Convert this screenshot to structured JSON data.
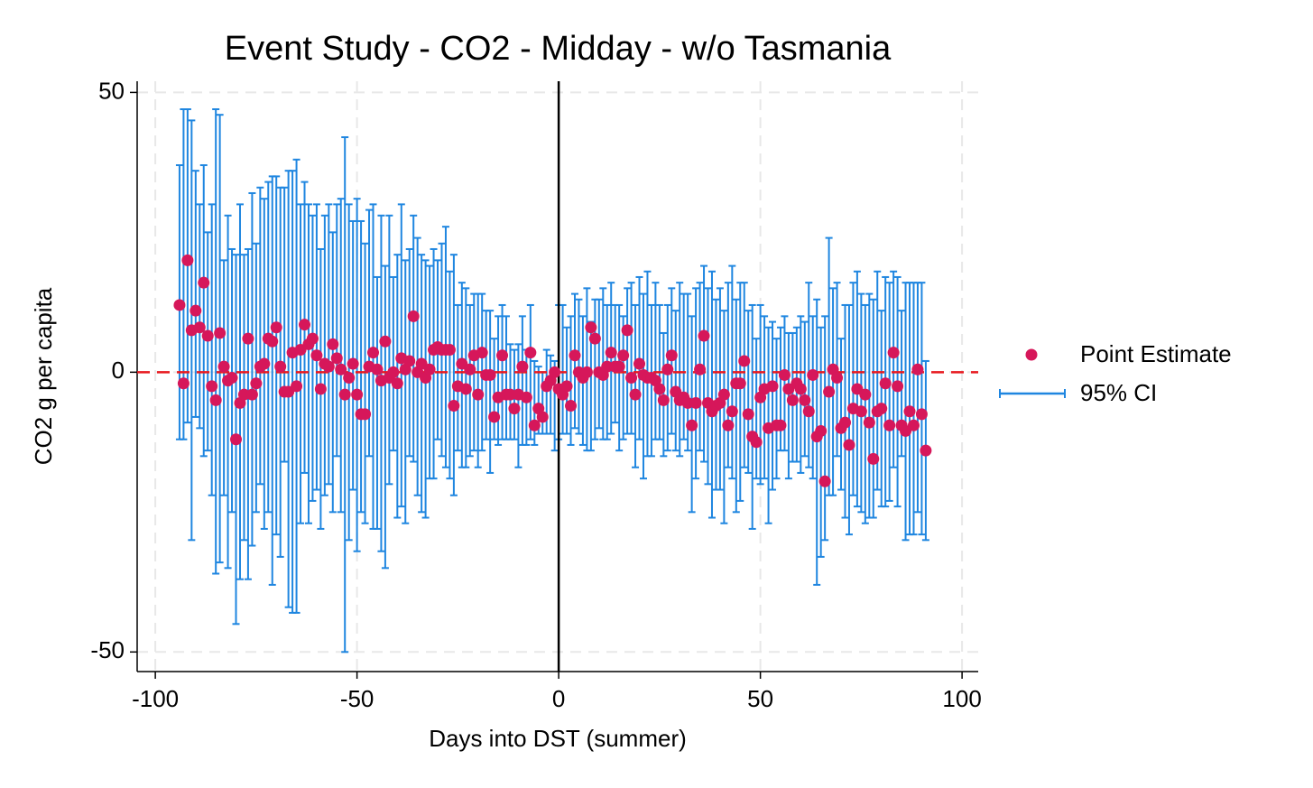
{
  "chart_data": {
    "type": "errorbar-scatter",
    "title": "Event Study - CO2 - Midday - w/o Tasmania",
    "x_label": "Days into DST (summer)",
    "y_label": "CO2 g per capita",
    "x": [
      -94,
      -93,
      -92,
      -91,
      -90,
      -89,
      -88,
      -87,
      -86,
      -85,
      -84,
      -83,
      -82,
      -81,
      -80,
      -79,
      -78,
      -77,
      -76,
      -75,
      -74,
      -73,
      -72,
      -71,
      -70,
      -69,
      -68,
      -67,
      -66,
      -65,
      -64,
      -63,
      -62,
      -61,
      -60,
      -59,
      -58,
      -57,
      -56,
      -55,
      -54,
      -53,
      -52,
      -51,
      -50,
      -49,
      -48,
      -47,
      -46,
      -45,
      -44,
      -43,
      -42,
      -41,
      -40,
      -39,
      -38,
      -37,
      -36,
      -35,
      -34,
      -33,
      -32,
      -31,
      -30,
      -29,
      -28,
      -27,
      -26,
      -25,
      -24,
      -23,
      -22,
      -21,
      -20,
      -19,
      -18,
      -17,
      -16,
      -15,
      -14,
      -13,
      -12,
      -11,
      -10,
      -9,
      -8,
      -7,
      -6,
      -5,
      -4,
      -3,
      -2,
      -1,
      0,
      1,
      2,
      3,
      4,
      5,
      6,
      7,
      8,
      9,
      10,
      11,
      12,
      13,
      14,
      15,
      16,
      17,
      18,
      19,
      20,
      21,
      22,
      23,
      24,
      25,
      26,
      27,
      28,
      29,
      30,
      31,
      32,
      33,
      34,
      35,
      36,
      37,
      38,
      39,
      40,
      41,
      42,
      43,
      44,
      45,
      46,
      47,
      48,
      49,
      50,
      51,
      52,
      53,
      54,
      55,
      56,
      57,
      58,
      59,
      60,
      61,
      62,
      63,
      64,
      65,
      66,
      67,
      68,
      69,
      70,
      71,
      72,
      73,
      74,
      75,
      76,
      77,
      78,
      79,
      80,
      81,
      82,
      83,
      84,
      85,
      86,
      87,
      88,
      89,
      90,
      91
    ],
    "series": [
      {
        "name": "Point Estimate",
        "color": "#d6175a",
        "values": [
          12,
          -2,
          20,
          7.5,
          11,
          8,
          16,
          6.5,
          -2.5,
          -5,
          7,
          1,
          -1.5,
          -1,
          -12,
          -5.5,
          -4,
          6,
          -4,
          -2,
          1,
          1.5,
          6,
          5.5,
          8,
          1,
          -3.5,
          -3.5,
          3.5,
          -2.5,
          4,
          8.5,
          5,
          6,
          3,
          -3,
          1.5,
          1,
          5,
          2.5,
          0.5,
          -4,
          -1,
          1.5,
          -4,
          -7.5,
          -7.5,
          1,
          3.5,
          0.5,
          -1.5,
          5.5,
          -1,
          0,
          -2,
          2.5,
          0.5,
          2,
          10,
          0,
          1.5,
          -1,
          0.5,
          4,
          4.5,
          4,
          4,
          4,
          -6,
          -2.5,
          1.5,
          -3,
          0.5,
          3,
          -4,
          3.5,
          -0.5,
          -0.5,
          -8,
          -4.5,
          3,
          -4,
          -4,
          -6.5,
          -4,
          1,
          -4.5,
          3.5,
          -9.5,
          -6.5,
          -8,
          -2.5,
          -1.5,
          0,
          -3,
          -4,
          -2.5,
          -6,
          3,
          0,
          -1,
          0,
          8,
          6,
          0,
          -0.5,
          1,
          3.5,
          1,
          1,
          3,
          7.5,
          -1,
          -4,
          1.5,
          -0.5,
          -1,
          -1,
          -1.5,
          -3,
          -5,
          0.5,
          3,
          -3.5,
          -5,
          -4.5,
          -5.5,
          -9.5,
          -5.5,
          0.5,
          6.5,
          -5.5,
          -7,
          -6,
          -5.5,
          -4,
          -9.5,
          -7,
          -2,
          -2,
          2,
          -7.5,
          -11.5,
          -12.5,
          -4.5,
          -3,
          -10,
          -2.5,
          -9.5,
          -9.5,
          -0.5,
          -3,
          -5,
          -2,
          -3,
          -5,
          -7,
          -0.5,
          -11.5,
          -10.5,
          -19.5,
          -3.5,
          0.5,
          -1,
          -10,
          -9,
          -13,
          -6.5,
          -3,
          -7,
          -4,
          -9,
          -15.5,
          -7,
          -6.5,
          -2,
          -9.5,
          3.5,
          -2.5,
          -9.5,
          -10.5,
          -7,
          -9.5,
          0.5,
          -7.5,
          -14
        ]
      },
      {
        "name": "95% CI",
        "color": "#1f86e0",
        "lower": [
          -12,
          -12,
          -9,
          -30,
          -8,
          -10,
          -15,
          -14,
          -22,
          -36,
          -34,
          -22,
          -35,
          -25,
          -45,
          -37,
          -30,
          -37,
          -31,
          -25,
          -20,
          -28,
          -25,
          -38,
          -29,
          -33,
          -16,
          -42,
          -43,
          -43,
          -27,
          -18,
          -27,
          -23,
          -21,
          -28,
          -22,
          -20,
          -25,
          -15,
          -25,
          -50,
          -30,
          -21,
          -32,
          -25,
          -27,
          -15,
          -28,
          -28,
          -32,
          -35,
          -20,
          -14,
          -26,
          -24,
          -27,
          -15,
          -16,
          -22,
          -25,
          -26,
          -19,
          -19,
          -12,
          -15,
          -17,
          -19,
          -22,
          -14,
          -17,
          -17,
          -15,
          -14,
          -17,
          -14,
          -12,
          -18,
          -12,
          -13,
          -12,
          -12,
          -12,
          -12,
          -17,
          -13,
          -13,
          -12,
          -13,
          -11,
          -11,
          -11,
          -11,
          -14,
          -12,
          -11,
          -11,
          -13,
          -10,
          -11,
          -13,
          -14,
          -14,
          -12,
          -10,
          -12,
          -12,
          -11,
          -9,
          -14,
          -12,
          -11,
          -11,
          -17,
          -12,
          -19,
          -15,
          -15,
          -12,
          -12,
          -15,
          -14,
          -11,
          -14,
          -15,
          -12,
          -14,
          -25,
          -19,
          -14,
          -16,
          -20,
          -26,
          -21,
          -21,
          -27,
          -17,
          -19,
          -25,
          -23,
          -17,
          -18,
          -28,
          -19,
          -20,
          -19,
          -27,
          -21,
          -19,
          -14,
          -14,
          -19,
          -16,
          -16,
          -18,
          -15,
          -17,
          -19,
          -38,
          -33,
          -30,
          -22,
          -22,
          -15,
          -21,
          -26,
          -29,
          -22,
          -24,
          -25,
          -27,
          -26,
          -26,
          -21,
          -24,
          -24,
          -23,
          -17,
          -24,
          -15,
          -30,
          -29,
          -29,
          -25,
          -29,
          -30
        ],
        "upper": [
          37,
          47,
          47,
          45,
          36,
          30,
          37,
          25,
          30,
          47,
          46,
          20,
          28,
          22,
          21,
          30,
          21,
          22,
          32,
          23,
          33,
          31,
          34,
          35,
          35,
          33,
          33,
          36,
          36,
          38,
          30,
          34,
          30,
          28,
          30,
          22,
          28,
          30,
          25,
          30,
          31,
          42,
          30,
          27,
          31,
          27,
          23,
          29,
          30,
          17,
          28,
          19,
          28,
          17,
          21,
          30,
          20,
          22,
          28,
          24,
          21,
          20,
          19,
          22,
          20,
          23,
          26,
          18,
          21,
          12,
          16,
          15,
          12,
          14,
          14,
          14,
          11,
          11,
          6,
          10,
          12,
          10,
          5,
          4,
          5,
          10,
          4,
          12,
          2,
          1,
          0,
          4,
          3,
          2,
          12,
          12,
          8,
          10,
          14,
          13,
          10,
          15,
          9,
          13,
          13,
          15,
          12,
          16,
          12,
          12,
          10,
          15,
          16,
          12,
          17,
          14,
          18,
          12,
          16,
          12,
          7,
          12,
          15,
          11,
          16,
          14,
          14,
          10,
          15,
          16,
          19,
          15,
          18,
          13,
          15,
          11,
          16,
          19,
          13,
          16,
          16,
          11,
          12,
          6,
          12,
          10,
          8,
          9,
          6,
          8,
          10,
          7,
          7,
          8,
          10,
          9,
          16,
          10,
          13,
          8,
          10,
          24,
          15,
          16,
          6,
          12,
          12,
          16,
          18,
          14,
          12,
          14,
          13,
          18,
          11,
          17,
          16,
          18,
          17,
          11,
          16,
          16,
          16,
          16,
          16,
          2
        ]
      }
    ],
    "xlim": [
      -104.5,
      104
    ],
    "ylim": [
      -53.5,
      52
    ],
    "xticks": [
      -100,
      -50,
      0,
      50,
      100
    ],
    "yticks": [
      -50,
      0,
      50
    ],
    "grid": true,
    "legend": "right",
    "reference_lines": {
      "x": 0,
      "y": 0,
      "x_color": "#000000",
      "y_color": "#e8191f"
    }
  }
}
